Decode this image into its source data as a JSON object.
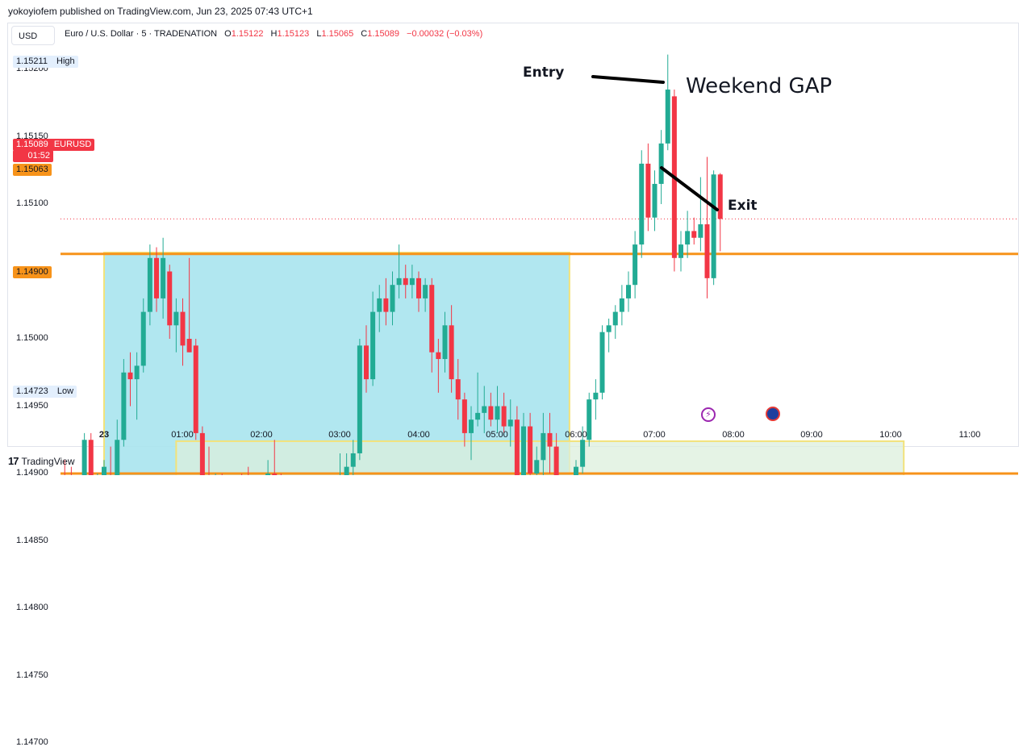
{
  "publisher_line": "yokoyiofem published on TradingView.com, Jun 23, 2025 07:43 UTC+1",
  "currency": "USD",
  "symbol_title": "Euro / U.S. Dollar · 5 · TRADENATION",
  "ohlc": {
    "o_label": "O",
    "o": "1.15122",
    "h_label": "H",
    "h": "1.15123",
    "l_label": "L",
    "l": "1.15065",
    "c_label": "C",
    "c": "1.15089",
    "change": "−0.00032 (−0.03%)"
  },
  "tags": {
    "high_price": "1.15211",
    "high_label": "High",
    "last_price": "1.15089",
    "last_countdown": "01:52",
    "symbol": "EURUSD",
    "line_upper_price": "1.15063",
    "line_lower_price": "1.14900",
    "low_price": "1.14723",
    "low_label": "Low"
  },
  "annotations": {
    "entry": "Entry",
    "exit": "Exit",
    "weekend_gap": "Weekend GAP"
  },
  "footer_brand": "TradingView",
  "colors": {
    "up": "#22ab94",
    "down": "#f23645",
    "hline": "#f7931a",
    "rect_blue": "#a8e4ee",
    "rect_green": "#dcefdc",
    "rect_border": "#f2e27a",
    "circle": "#f4a37a"
  },
  "chart_data": {
    "type": "candlestick",
    "ylim": [
      1.1468,
      1.15225
    ],
    "y_ticks": [
      1.147,
      1.1475,
      1.148,
      1.1485,
      1.149,
      1.1495,
      1.15,
      1.1505,
      1.151,
      1.1515,
      1.152
    ],
    "x_ticks": [
      "23",
      "01:00",
      "02:00",
      "03:00",
      "04:00",
      "05:00",
      "06:00",
      "07:00",
      "08:00",
      "09:00",
      "10:00",
      "11:00"
    ],
    "horizontal_lines": [
      1.15063,
      1.149
    ],
    "last_price": 1.15089,
    "zones": [
      {
        "name": "blue-zone",
        "from": "00:00",
        "to": "05:55",
        "top": 1.15064,
        "bottom": 1.14723,
        "color": "#a8e4ee"
      },
      {
        "name": "green-zone",
        "from": "00:55",
        "to": "10:10",
        "top": 1.14924,
        "bottom": 1.14828,
        "color": "#dcefdc"
      }
    ],
    "candles": [
      {
        "t": "23:30",
        "o": 1.1489,
        "h": 1.1491,
        "l": 1.1486,
        "c": 1.1488
      },
      {
        "t": "23:35",
        "o": 1.1488,
        "h": 1.14905,
        "l": 1.1484,
        "c": 1.1486
      },
      {
        "t": "23:40",
        "o": 1.1486,
        "h": 1.1488,
        "l": 1.14825,
        "c": 1.14845
      },
      {
        "t": "23:45",
        "o": 1.14845,
        "h": 1.1493,
        "l": 1.1484,
        "c": 1.14925
      },
      {
        "t": "23:50",
        "o": 1.14925,
        "h": 1.1493,
        "l": 1.1488,
        "c": 1.14885
      },
      {
        "t": "23:55",
        "o": 1.14875,
        "h": 1.149,
        "l": 1.1487,
        "c": 1.1489
      },
      {
        "t": "00:00",
        "o": 1.1489,
        "h": 1.1491,
        "l": 1.1486,
        "c": 1.14905
      },
      {
        "t": "00:05",
        "o": 1.14895,
        "h": 1.1492,
        "l": 1.1487,
        "c": 1.1488
      },
      {
        "t": "00:10",
        "o": 1.1488,
        "h": 1.1494,
        "l": 1.1487,
        "c": 1.14925
      },
      {
        "t": "00:15",
        "o": 1.14925,
        "h": 1.14985,
        "l": 1.1492,
        "c": 1.14975
      },
      {
        "t": "00:20",
        "o": 1.14975,
        "h": 1.1499,
        "l": 1.1495,
        "c": 1.1497
      },
      {
        "t": "00:25",
        "o": 1.1497,
        "h": 1.1499,
        "l": 1.1494,
        "c": 1.1498
      },
      {
        "t": "00:30",
        "o": 1.1498,
        "h": 1.1503,
        "l": 1.14975,
        "c": 1.1502
      },
      {
        "t": "00:35",
        "o": 1.1502,
        "h": 1.1507,
        "l": 1.1501,
        "c": 1.1506
      },
      {
        "t": "00:40",
        "o": 1.1506,
        "h": 1.15068,
        "l": 1.1502,
        "c": 1.1503
      },
      {
        "t": "00:45",
        "o": 1.1503,
        "h": 1.15075,
        "l": 1.15015,
        "c": 1.1506
      },
      {
        "t": "00:50",
        "o": 1.1505,
        "h": 1.15055,
        "l": 1.15,
        "c": 1.1501
      },
      {
        "t": "00:55",
        "o": 1.1501,
        "h": 1.1503,
        "l": 1.1499,
        "c": 1.1502
      },
      {
        "t": "01:00",
        "o": 1.1502,
        "h": 1.1503,
        "l": 1.1498,
        "c": 1.14995
      },
      {
        "t": "01:05",
        "o": 1.15,
        "h": 1.1506,
        "l": 1.1499,
        "c": 1.1499
      },
      {
        "t": "01:10",
        "o": 1.14995,
        "h": 1.15,
        "l": 1.14925,
        "c": 1.1493
      },
      {
        "t": "01:15",
        "o": 1.1493,
        "h": 1.14935,
        "l": 1.1486,
        "c": 1.1488
      },
      {
        "t": "01:20",
        "o": 1.1488,
        "h": 1.1492,
        "l": 1.1485,
        "c": 1.1487
      },
      {
        "t": "01:25",
        "o": 1.1487,
        "h": 1.149,
        "l": 1.1481,
        "c": 1.1489
      },
      {
        "t": "01:30",
        "o": 1.1489,
        "h": 1.149,
        "l": 1.1485,
        "c": 1.1488
      },
      {
        "t": "01:35",
        "o": 1.1488,
        "h": 1.1489,
        "l": 1.1481,
        "c": 1.1483
      },
      {
        "t": "01:40",
        "o": 1.1483,
        "h": 1.1489,
        "l": 1.1482,
        "c": 1.14875
      },
      {
        "t": "01:45",
        "o": 1.14875,
        "h": 1.149,
        "l": 1.1484,
        "c": 1.14855
      },
      {
        "t": "01:50",
        "o": 1.14855,
        "h": 1.14905,
        "l": 1.14835,
        "c": 1.14845
      },
      {
        "t": "01:55",
        "o": 1.14845,
        "h": 1.1488,
        "l": 1.14835,
        "c": 1.1486
      },
      {
        "t": "02:00",
        "o": 1.1486,
        "h": 1.14895,
        "l": 1.1484,
        "c": 1.1485
      },
      {
        "t": "02:05",
        "o": 1.1485,
        "h": 1.1491,
        "l": 1.14845,
        "c": 1.149
      },
      {
        "t": "02:10",
        "o": 1.149,
        "h": 1.14925,
        "l": 1.1488,
        "c": 1.14895
      },
      {
        "t": "02:15",
        "o": 1.14895,
        "h": 1.149,
        "l": 1.1483,
        "c": 1.1484
      },
      {
        "t": "02:20",
        "o": 1.1484,
        "h": 1.1485,
        "l": 1.1482,
        "c": 1.1483
      },
      {
        "t": "02:25",
        "o": 1.1483,
        "h": 1.1484,
        "l": 1.1479,
        "c": 1.148
      },
      {
        "t": "02:30",
        "o": 1.148,
        "h": 1.1481,
        "l": 1.1477,
        "c": 1.14785
      },
      {
        "t": "02:35",
        "o": 1.1479,
        "h": 1.14795,
        "l": 1.1472,
        "c": 1.1473
      },
      {
        "t": "02:40",
        "o": 1.1473,
        "h": 1.1479,
        "l": 1.14725,
        "c": 1.1478
      },
      {
        "t": "02:45",
        "o": 1.1478,
        "h": 1.1482,
        "l": 1.1477,
        "c": 1.14805
      },
      {
        "t": "02:50",
        "o": 1.14805,
        "h": 1.14855,
        "l": 1.148,
        "c": 1.1484
      },
      {
        "t": "02:55",
        "o": 1.1484,
        "h": 1.1487,
        "l": 1.1483,
        "c": 1.1486
      },
      {
        "t": "03:00",
        "o": 1.1486,
        "h": 1.14915,
        "l": 1.14855,
        "c": 1.14895
      },
      {
        "t": "03:05",
        "o": 1.14895,
        "h": 1.14915,
        "l": 1.1488,
        "c": 1.14905
      },
      {
        "t": "03:10",
        "o": 1.14905,
        "h": 1.14925,
        "l": 1.1489,
        "c": 1.14915
      },
      {
        "t": "03:15",
        "o": 1.14915,
        "h": 1.15,
        "l": 1.1491,
        "c": 1.14995
      },
      {
        "t": "03:20",
        "o": 1.14995,
        "h": 1.1501,
        "l": 1.1496,
        "c": 1.1497
      },
      {
        "t": "03:25",
        "o": 1.1497,
        "h": 1.15035,
        "l": 1.14965,
        "c": 1.1502
      },
      {
        "t": "03:30",
        "o": 1.1502,
        "h": 1.1504,
        "l": 1.15005,
        "c": 1.1503
      },
      {
        "t": "03:35",
        "o": 1.1503,
        "h": 1.15045,
        "l": 1.1501,
        "c": 1.1502
      },
      {
        "t": "03:40",
        "o": 1.1502,
        "h": 1.1505,
        "l": 1.1501,
        "c": 1.1504
      },
      {
        "t": "03:45",
        "o": 1.1504,
        "h": 1.1507,
        "l": 1.1503,
        "c": 1.15045
      },
      {
        "t": "03:50",
        "o": 1.15045,
        "h": 1.15055,
        "l": 1.1503,
        "c": 1.1504
      },
      {
        "t": "03:55",
        "o": 1.1504,
        "h": 1.15055,
        "l": 1.1503,
        "c": 1.15045
      },
      {
        "t": "04:00",
        "o": 1.15045,
        "h": 1.1505,
        "l": 1.1502,
        "c": 1.1503
      },
      {
        "t": "04:05",
        "o": 1.1503,
        "h": 1.15045,
        "l": 1.1502,
        "c": 1.1504
      },
      {
        "t": "04:10",
        "o": 1.1504,
        "h": 1.15045,
        "l": 1.14975,
        "c": 1.1499
      },
      {
        "t": "04:15",
        "o": 1.1499,
        "h": 1.15,
        "l": 1.1496,
        "c": 1.14985
      },
      {
        "t": "04:20",
        "o": 1.14985,
        "h": 1.1502,
        "l": 1.14975,
        "c": 1.1501
      },
      {
        "t": "04:25",
        "o": 1.1501,
        "h": 1.15025,
        "l": 1.1496,
        "c": 1.1497
      },
      {
        "t": "04:30",
        "o": 1.1497,
        "h": 1.14985,
        "l": 1.1494,
        "c": 1.14955
      },
      {
        "t": "04:35",
        "o": 1.14955,
        "h": 1.1496,
        "l": 1.1492,
        "c": 1.1493
      },
      {
        "t": "04:40",
        "o": 1.1493,
        "h": 1.1495,
        "l": 1.1491,
        "c": 1.1494
      },
      {
        "t": "04:45",
        "o": 1.1494,
        "h": 1.14975,
        "l": 1.14935,
        "c": 1.14945
      },
      {
        "t": "04:50",
        "o": 1.14945,
        "h": 1.14965,
        "l": 1.1493,
        "c": 1.1495
      },
      {
        "t": "04:55",
        "o": 1.1495,
        "h": 1.1496,
        "l": 1.14935,
        "c": 1.1494
      },
      {
        "t": "05:00",
        "o": 1.1494,
        "h": 1.14965,
        "l": 1.1493,
        "c": 1.1495
      },
      {
        "t": "05:05",
        "o": 1.1495,
        "h": 1.1496,
        "l": 1.1493,
        "c": 1.14935
      },
      {
        "t": "05:10",
        "o": 1.14935,
        "h": 1.14955,
        "l": 1.1492,
        "c": 1.1494
      },
      {
        "t": "05:15",
        "o": 1.1494,
        "h": 1.1495,
        "l": 1.1488,
        "c": 1.1489
      },
      {
        "t": "05:20",
        "o": 1.1489,
        "h": 1.14945,
        "l": 1.14885,
        "c": 1.14935
      },
      {
        "t": "05:25",
        "o": 1.14935,
        "h": 1.14945,
        "l": 1.1489,
        "c": 1.149
      },
      {
        "t": "05:30",
        "o": 1.149,
        "h": 1.1492,
        "l": 1.1488,
        "c": 1.1491
      },
      {
        "t": "05:35",
        "o": 1.1491,
        "h": 1.14945,
        "l": 1.14895,
        "c": 1.1493
      },
      {
        "t": "05:40",
        "o": 1.1493,
        "h": 1.14945,
        "l": 1.149,
        "c": 1.1492
      },
      {
        "t": "05:45",
        "o": 1.1492,
        "h": 1.1493,
        "l": 1.1486,
        "c": 1.1487
      },
      {
        "t": "05:50",
        "o": 1.1487,
        "h": 1.14885,
        "l": 1.1485,
        "c": 1.1488
      },
      {
        "t": "05:55",
        "o": 1.1488,
        "h": 1.14895,
        "l": 1.1486,
        "c": 1.14885
      },
      {
        "t": "06:00",
        "o": 1.14885,
        "h": 1.1491,
        "l": 1.1488,
        "c": 1.14905
      },
      {
        "t": "06:05",
        "o": 1.14905,
        "h": 1.14935,
        "l": 1.149,
        "c": 1.14925
      },
      {
        "t": "06:10",
        "o": 1.14925,
        "h": 1.1496,
        "l": 1.1492,
        "c": 1.14955
      },
      {
        "t": "06:15",
        "o": 1.14955,
        "h": 1.1497,
        "l": 1.1494,
        "c": 1.1496
      },
      {
        "t": "06:20",
        "o": 1.1496,
        "h": 1.1501,
        "l": 1.14955,
        "c": 1.15005
      },
      {
        "t": "06:25",
        "o": 1.15005,
        "h": 1.15015,
        "l": 1.1499,
        "c": 1.1501
      },
      {
        "t": "06:30",
        "o": 1.1501,
        "h": 1.15025,
        "l": 1.15,
        "c": 1.1502
      },
      {
        "t": "06:35",
        "o": 1.1502,
        "h": 1.1504,
        "l": 1.1501,
        "c": 1.1503
      },
      {
        "t": "06:40",
        "o": 1.1503,
        "h": 1.1505,
        "l": 1.1502,
        "c": 1.1504
      },
      {
        "t": "06:45",
        "o": 1.1504,
        "h": 1.1508,
        "l": 1.1503,
        "c": 1.1507
      },
      {
        "t": "06:50",
        "o": 1.1507,
        "h": 1.1514,
        "l": 1.1506,
        "c": 1.1513
      },
      {
        "t": "06:55",
        "o": 1.1513,
        "h": 1.15145,
        "l": 1.1508,
        "c": 1.1509
      },
      {
        "t": "07:00",
        "o": 1.1509,
        "h": 1.15125,
        "l": 1.1508,
        "c": 1.15115
      },
      {
        "t": "07:05",
        "o": 1.15115,
        "h": 1.15155,
        "l": 1.151,
        "c": 1.15145
      },
      {
        "t": "07:10",
        "o": 1.15145,
        "h": 1.15211,
        "l": 1.1514,
        "c": 1.15185
      },
      {
        "t": "07:15",
        "o": 1.1518,
        "h": 1.15185,
        "l": 1.1505,
        "c": 1.1506
      },
      {
        "t": "07:20",
        "o": 1.1506,
        "h": 1.1508,
        "l": 1.1505,
        "c": 1.1507
      },
      {
        "t": "07:25",
        "o": 1.1507,
        "h": 1.15095,
        "l": 1.1506,
        "c": 1.1508
      },
      {
        "t": "07:30",
        "o": 1.1508,
        "h": 1.1509,
        "l": 1.1507,
        "c": 1.15075
      },
      {
        "t": "07:35",
        "o": 1.15075,
        "h": 1.1512,
        "l": 1.15065,
        "c": 1.15085
      },
      {
        "t": "07:40",
        "o": 1.15085,
        "h": 1.15135,
        "l": 1.1503,
        "c": 1.15045
      },
      {
        "t": "07:45",
        "o": 1.15045,
        "h": 1.15125,
        "l": 1.1504,
        "c": 1.15122
      },
      {
        "t": "07:50",
        "o": 1.15122,
        "h": 1.15123,
        "l": 1.15065,
        "c": 1.15089
      }
    ]
  }
}
